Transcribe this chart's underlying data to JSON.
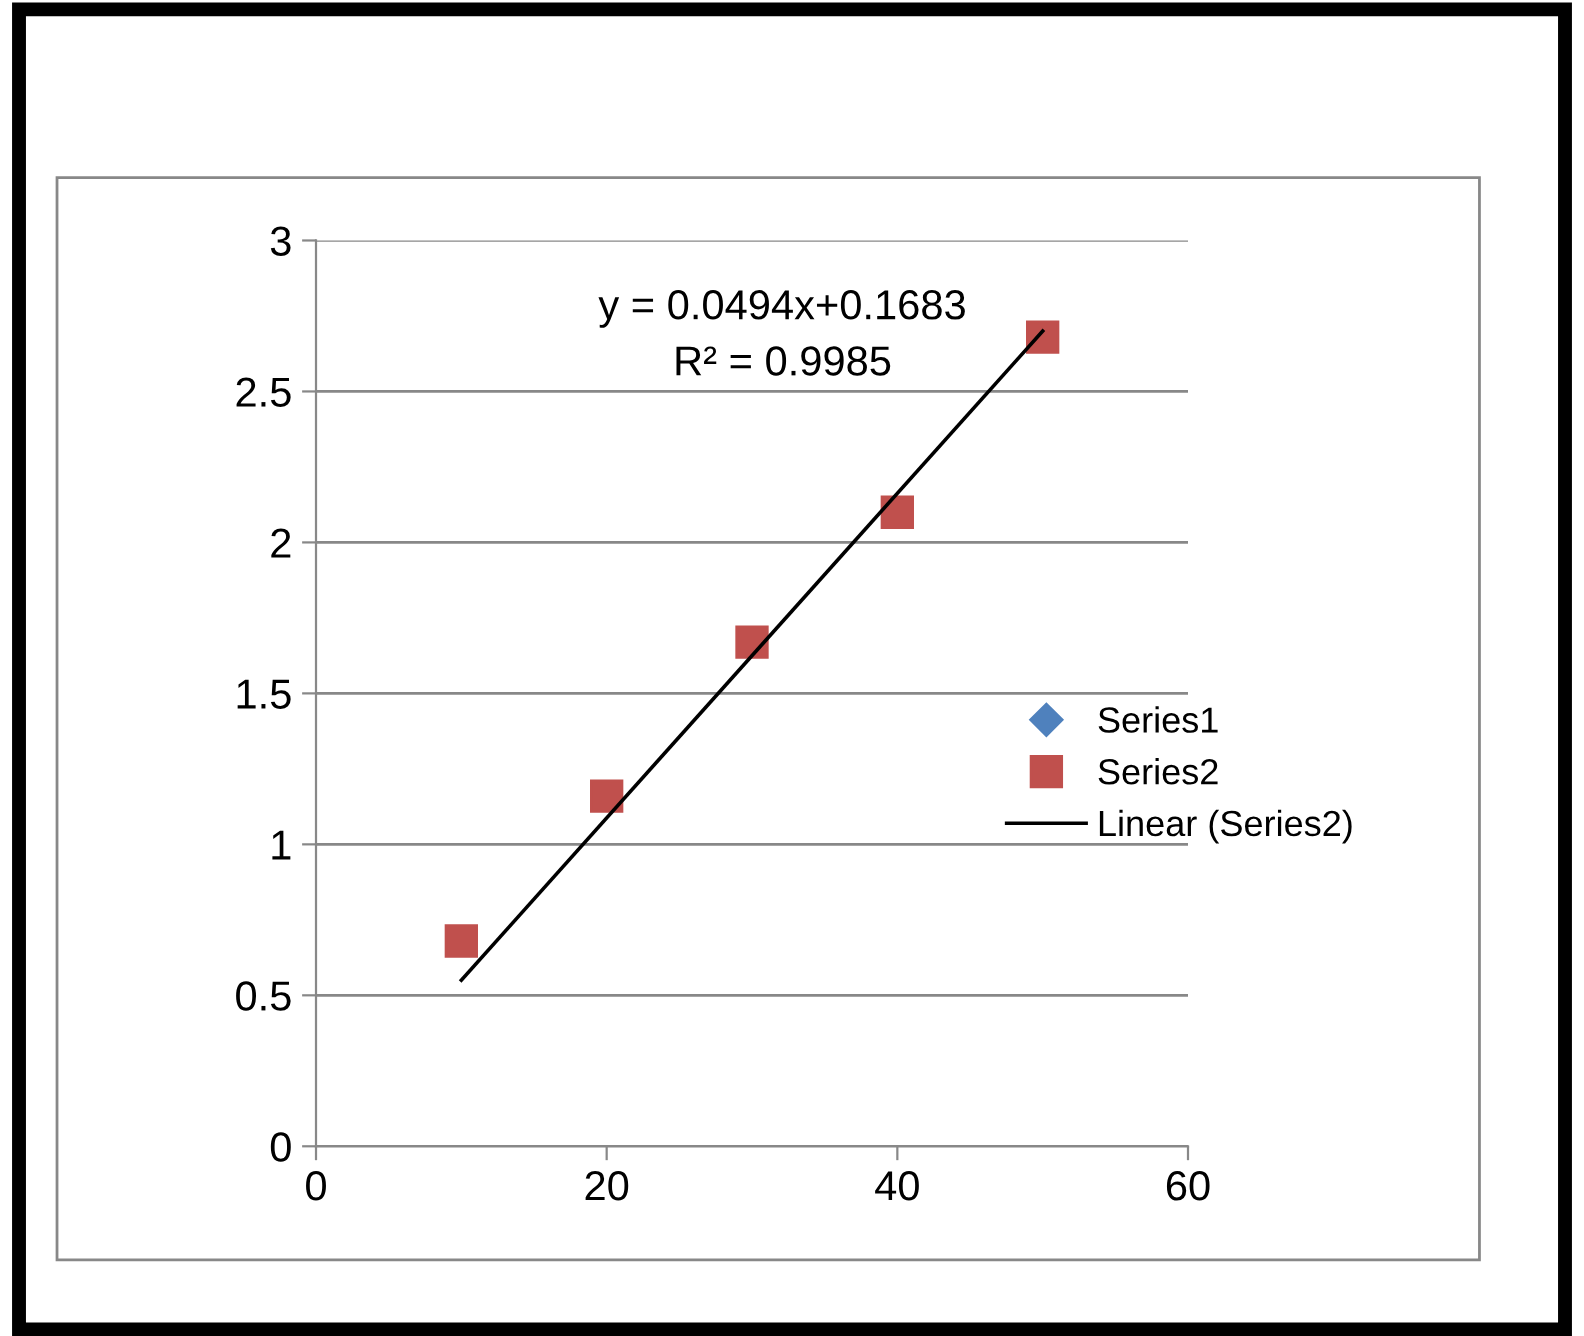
{
  "chart_data": {
    "type": "scatter",
    "xlim": [
      0,
      60
    ],
    "xticks": [
      0,
      20,
      40,
      60
    ],
    "ylim": [
      0,
      3
    ],
    "yticks": [
      0,
      0.5,
      1,
      1.5,
      2,
      2.5,
      3
    ],
    "grid": "y",
    "legend": "right",
    "annotations": [
      "y = 0.0494x+0.1683",
      "R² = 0.9985"
    ],
    "series": [
      {
        "name": "Series1",
        "color": "#4f81bd",
        "marker": "diamond",
        "values": [
          null,
          null,
          null,
          null,
          null
        ]
      },
      {
        "name": "Series2",
        "color": "#c0504d",
        "marker": "square",
        "x": [
          10,
          20,
          30,
          40,
          50
        ],
        "values": [
          0.68,
          1.16,
          1.67,
          2.1,
          2.68
        ]
      },
      {
        "name": "Linear (Series2)",
        "type": "line",
        "color": "#000000",
        "marker": "none",
        "x": [
          10,
          50
        ],
        "values": [
          0.55,
          2.7
        ]
      }
    ]
  }
}
